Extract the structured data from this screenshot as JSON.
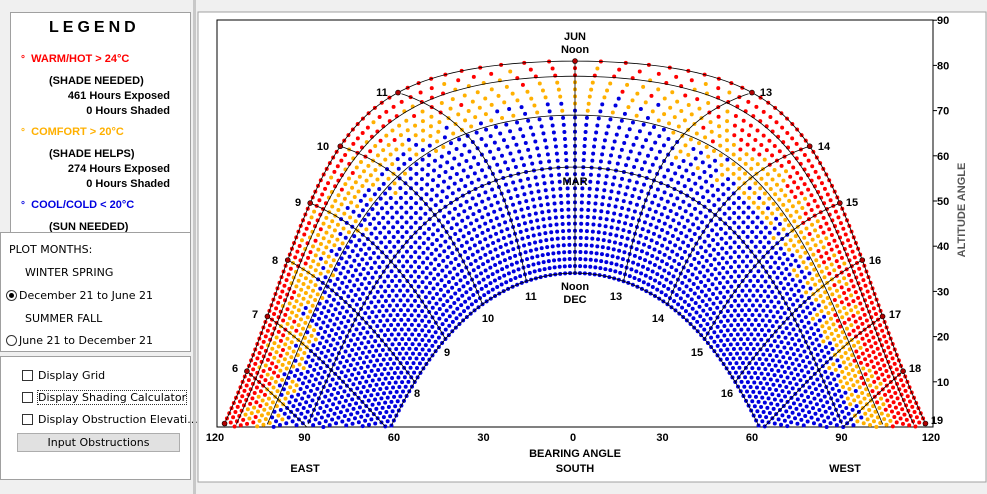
{
  "legend": {
    "title": "LEGEND",
    "items": [
      {
        "label": "WARM/HOT  > 24°C",
        "lines": [
          "(SHADE NEEDED)",
          "461 Hours Exposed",
          "0 Hours Shaded"
        ]
      },
      {
        "label": "COMFORT  > 20°C",
        "lines": [
          "(SHADE HELPS)",
          "274 Hours Exposed",
          "0 Hours Shaded"
        ]
      },
      {
        "label": "COOL/COLD  < 20°C",
        "lines": [
          "(SUN NEEDED)"
        ]
      }
    ]
  },
  "plot_months": {
    "title": "PLOT MONTHS:",
    "groups": [
      {
        "label": "WINTER SPRING",
        "option": "December 21 to June 21"
      },
      {
        "label": "SUMMER FALL",
        "option": "June 21 to December 21"
      }
    ]
  },
  "options": [
    "Display Grid",
    "Display Shading Calculator",
    "Display Obstruction Elevati..."
  ],
  "button": "Input Obstructions",
  "chart": {
    "x_ticks": [
      "120",
      "90",
      "60",
      "30",
      "0",
      "30",
      "60",
      "90",
      "120"
    ],
    "x_label": "BEARING ANGLE",
    "directions": [
      "EAST",
      "SOUTH",
      "WEST"
    ],
    "y_ticks": [
      "90",
      "80",
      "70",
      "60",
      "50",
      "40",
      "30",
      "20",
      "10"
    ],
    "y_label": "ALTITUDE ANGLE",
    "jun_label": [
      "JUN",
      "Noon"
    ],
    "mar_label": "MAR",
    "dec_label": [
      "Noon",
      "DEC"
    ],
    "summer_hours": [
      "6",
      "7",
      "8",
      "9",
      "10",
      "11",
      "13",
      "14",
      "15",
      "16",
      "17",
      "18",
      "19"
    ],
    "winter_hours": [
      "8",
      "9",
      "10",
      "11",
      "13",
      "14",
      "15",
      "16"
    ]
  }
}
